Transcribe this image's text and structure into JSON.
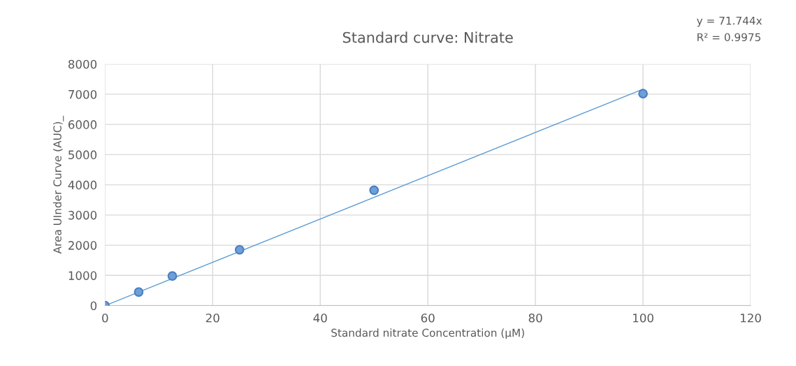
{
  "chart_data": {
    "type": "scatter",
    "title": "Standard curve: Nitrate",
    "xlabel": "Standard nitrate Concentration (µM)",
    "ylabel": "Area UInder Curve (AUC)_",
    "annotations": [
      "y = 71.744x",
      "R² = 0.9975"
    ],
    "series": [
      {
        "marker": "circle",
        "color": "#6f9fd8",
        "x": [
          0,
          6.25,
          12.5,
          25,
          50,
          100
        ],
        "values": [
          0,
          450,
          980,
          1850,
          3820,
          7020
        ]
      },
      {
        "type": "line",
        "color": "#5b9bd5",
        "x": [
          0,
          100
        ],
        "values": [
          0,
          7170
        ]
      }
    ],
    "xlim": [
      0,
      120
    ],
    "xticks": [
      0,
      20,
      40,
      60,
      80,
      100,
      120
    ],
    "ylim": [
      0,
      8000
    ],
    "yticks": [
      0,
      1000,
      2000,
      3000,
      4000,
      5000,
      6000,
      7000,
      8000
    ],
    "grid": true,
    "legend": false
  }
}
